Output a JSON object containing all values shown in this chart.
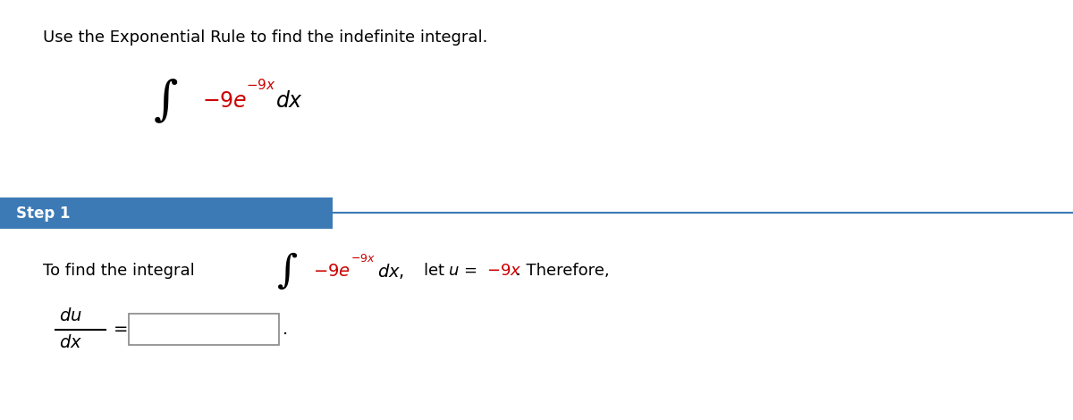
{
  "bg_color": "#ffffff",
  "title_text": "Use the Exponential Rule to find the indefinite integral.",
  "title_color": "#000000",
  "title_fontsize": 13,
  "step_label": "Step 1",
  "step_bg_color": "#3c7ab5",
  "step_text_color": "#ffffff",
  "step_fontsize": 12,
  "body_text_color": "#000000",
  "red_color": "#cc0000",
  "line_color": "#3c7ab5",
  "integral_symbol": "∫"
}
